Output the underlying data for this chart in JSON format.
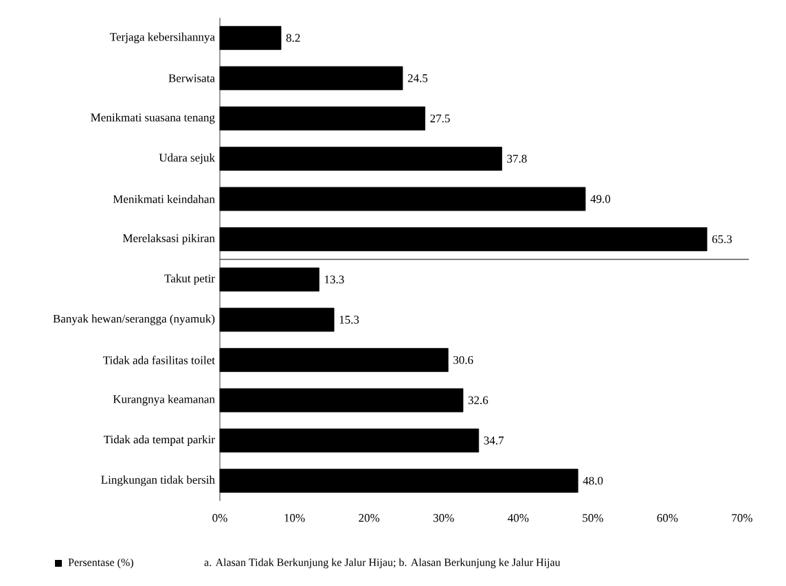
{
  "chart_data": {
    "type": "bar",
    "orientation": "horizontal",
    "categories": [
      "Terjaga kebersihannya",
      "Berwisata",
      "Menikmati suasana tenang",
      "Udara sejuk",
      "Menikmati keindahan",
      "Merelaksasi pikiran",
      "Takut petir",
      "Banyak hewan/serangga (nyamuk)",
      "Tidak ada fasilitas toilet",
      "Kurangnya keamanan",
      "Tidak ada tempat parkir",
      "Lingkungan tidak bersih"
    ],
    "series": [
      {
        "name": "Persentase (%)",
        "color": "#000000",
        "values": [
          8.2,
          24.5,
          27.5,
          37.8,
          49.0,
          65.3,
          13.3,
          15.3,
          30.6,
          32.6,
          34.7,
          48.0
        ],
        "value_labels": [
          "8.2",
          "24.5",
          "27.5",
          "37.8",
          "49.0",
          "65.3",
          "13.3",
          "15.3",
          "30.6",
          "32.6",
          "34.7",
          "48.0"
        ]
      }
    ],
    "xlim": [
      0,
      70
    ],
    "xticks": [
      {
        "value": 0,
        "label": "0%"
      },
      {
        "value": 10,
        "label": "10%"
      },
      {
        "value": 20,
        "label": "20%"
      },
      {
        "value": 30,
        "label": "30%"
      },
      {
        "value": 40,
        "label": "40%"
      },
      {
        "value": 50,
        "label": "50%"
      },
      {
        "value": 60,
        "label": "60%"
      },
      {
        "value": 70,
        "label": "70%"
      }
    ],
    "legend": "bottom left",
    "grid": false,
    "annotations": [
      "a. Alasan Tidak Berkunjung ke Jalur Hijau; b. Alasan Berkunjung ke Jalur Hijau"
    ]
  }
}
